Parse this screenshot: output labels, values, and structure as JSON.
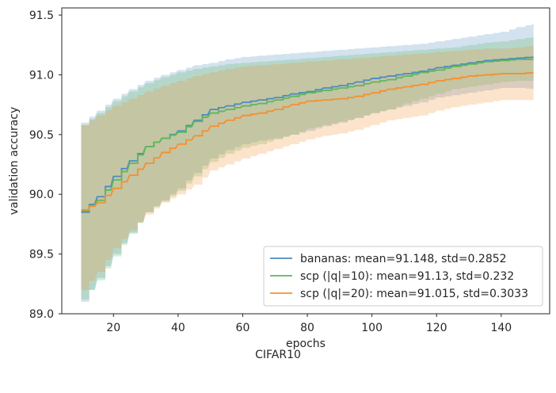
{
  "caption": "CIFAR10",
  "chart_data": {
    "type": "line",
    "title": "",
    "xlabel": "epochs",
    "ylabel": "validation accuracy",
    "xlim": [
      4,
      155
    ],
    "ylim": [
      89.0,
      91.56
    ],
    "xticks": [
      20,
      40,
      60,
      80,
      100,
      120,
      140
    ],
    "yticks": [
      89.0,
      89.5,
      90.0,
      90.5,
      91.0,
      91.5
    ],
    "ytick_labels": [
      "89.0",
      "89.5",
      "90.0",
      "90.5",
      "91.0",
      "91.5"
    ],
    "grid": false,
    "legend_position": "lower-right",
    "x": [
      10,
      15,
      20,
      25,
      30,
      35,
      40,
      45,
      50,
      55,
      60,
      65,
      70,
      75,
      80,
      85,
      90,
      95,
      100,
      105,
      110,
      115,
      120,
      125,
      130,
      135,
      140,
      145,
      150
    ],
    "series": [
      {
        "name": "bananas: mean=91.148, std=0.2852",
        "color": "#4c8cbf",
        "mean": [
          89.85,
          89.98,
          90.15,
          90.28,
          90.4,
          90.47,
          90.53,
          90.62,
          90.71,
          90.74,
          90.77,
          90.79,
          90.81,
          90.84,
          90.86,
          90.89,
          90.91,
          90.94,
          90.97,
          90.99,
          91.01,
          91.03,
          91.06,
          91.08,
          91.1,
          91.12,
          91.13,
          91.14,
          91.15
        ],
        "upper": [
          90.6,
          90.7,
          90.8,
          90.88,
          90.95,
          91.0,
          91.04,
          91.08,
          91.1,
          91.13,
          91.15,
          91.16,
          91.17,
          91.18,
          91.19,
          91.2,
          91.21,
          91.22,
          91.23,
          91.24,
          91.25,
          91.26,
          91.28,
          91.3,
          91.32,
          91.34,
          91.36,
          91.4,
          91.43
        ],
        "lower": [
          89.1,
          89.3,
          89.5,
          89.68,
          89.85,
          89.95,
          90.05,
          90.18,
          90.3,
          90.37,
          90.42,
          90.45,
          90.47,
          90.5,
          90.53,
          90.57,
          90.6,
          90.64,
          90.68,
          90.71,
          90.74,
          90.77,
          90.81,
          90.83,
          90.85,
          90.87,
          90.89,
          90.89,
          90.88
        ]
      },
      {
        "name": "scp (|q|=10): mean=91.13, std=0.232",
        "color": "#5cb85c",
        "mean": [
          89.86,
          89.95,
          90.12,
          90.26,
          90.4,
          90.47,
          90.52,
          90.61,
          90.68,
          90.71,
          90.74,
          90.76,
          90.79,
          90.82,
          90.85,
          90.87,
          90.89,
          90.91,
          90.94,
          90.96,
          90.99,
          91.02,
          91.04,
          91.07,
          91.09,
          91.11,
          91.12,
          91.13,
          91.13
        ],
        "upper": [
          90.58,
          90.68,
          90.78,
          90.86,
          90.93,
          90.98,
          91.02,
          91.05,
          91.07,
          91.09,
          91.1,
          91.11,
          91.12,
          91.13,
          91.14,
          91.15,
          91.16,
          91.17,
          91.18,
          91.19,
          91.2,
          91.21,
          91.22,
          91.23,
          91.25,
          91.27,
          91.28,
          91.3,
          91.32
        ],
        "lower": [
          89.12,
          89.28,
          89.48,
          89.67,
          89.85,
          89.94,
          90.03,
          90.15,
          90.27,
          90.34,
          90.39,
          90.42,
          90.46,
          90.5,
          90.55,
          90.58,
          90.61,
          90.64,
          90.68,
          90.71,
          90.76,
          90.8,
          90.84,
          90.88,
          90.9,
          90.92,
          90.94,
          90.95,
          90.95
        ]
      },
      {
        "name": "scp (|q|=20): mean=91.015, std=0.3033",
        "color": "#f5902e",
        "mean": [
          89.87,
          89.93,
          90.05,
          90.16,
          90.26,
          90.35,
          90.42,
          90.49,
          90.57,
          90.62,
          90.66,
          90.68,
          90.71,
          90.75,
          90.78,
          90.79,
          90.8,
          90.82,
          90.85,
          90.88,
          90.9,
          90.92,
          90.95,
          90.97,
          90.99,
          91.0,
          91.01,
          91.01,
          91.02
        ],
        "upper": [
          90.58,
          90.66,
          90.74,
          90.8,
          90.86,
          90.91,
          90.95,
          90.99,
          91.02,
          91.05,
          91.07,
          91.08,
          91.09,
          91.1,
          91.11,
          91.12,
          91.13,
          91.14,
          91.15,
          91.16,
          91.17,
          91.18,
          91.19,
          91.2,
          91.21,
          91.22,
          91.22,
          91.23,
          91.25
        ],
        "lower": [
          89.2,
          89.35,
          89.55,
          89.7,
          89.83,
          89.93,
          90.0,
          90.08,
          90.2,
          90.25,
          90.3,
          90.34,
          90.38,
          90.42,
          90.46,
          90.49,
          90.51,
          90.54,
          90.58,
          90.62,
          90.64,
          90.66,
          90.7,
          90.73,
          90.75,
          90.77,
          90.79,
          90.79,
          90.79
        ]
      }
    ]
  }
}
